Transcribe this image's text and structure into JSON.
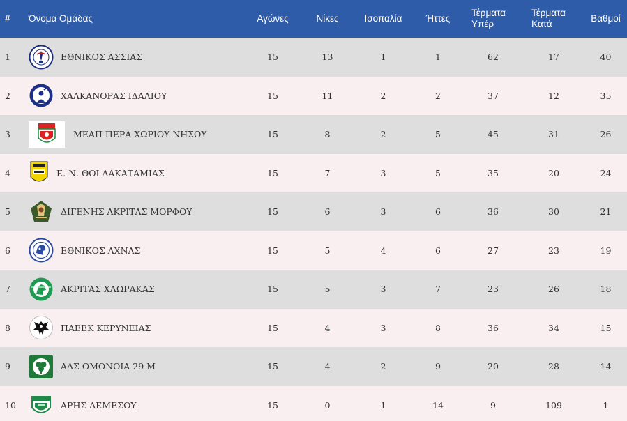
{
  "headers": {
    "rank": "#",
    "team": "Όνομα Ομάδας",
    "played": "Αγώνες",
    "wins": "Νίκες",
    "draws": "Ισοπαλία",
    "losses": "Ήττες",
    "goals_for_1": "Τέρματα",
    "goals_for_2": "Υπέρ",
    "goals_against_1": "Τέρματα",
    "goals_against_2": "Κατά",
    "points": "Βαθμοί"
  },
  "colors": {
    "header_bg": "#2e5ca8",
    "row_odd": "#dedede",
    "row_even": "#f9eff0"
  },
  "rows": [
    {
      "rank": "1",
      "team": "ΕΘΝΙΚΟΣ ΑΣΣΙΑΣ",
      "logo": "ethnikos-assias-crest-icon",
      "played": "15",
      "wins": "13",
      "draws": "1",
      "losses": "1",
      "gf": "62",
      "ga": "17",
      "pts": "40"
    },
    {
      "rank": "2",
      "team": "ΧΑΛΚΑΝΟΡΑΣ ΙΔΑΛΙΟΥ",
      "logo": "chalkanoras-crest-icon",
      "played": "15",
      "wins": "11",
      "draws": "2",
      "losses": "2",
      "gf": "37",
      "ga": "12",
      "pts": "35"
    },
    {
      "rank": "3",
      "team": "ΜΕΑΠ ΠΕΡΑ ΧΩΡΙΟΥ ΝΗΣΟΥ",
      "logo": "meap-crest-icon",
      "played": "15",
      "wins": "8",
      "draws": "2",
      "losses": "5",
      "gf": "45",
      "ga": "31",
      "pts": "26"
    },
    {
      "rank": "4",
      "team": "Ε. Ν. ΘΟΙ ΛΑΚΑΤΑΜΙΑΣ",
      "logo": "thoi-crest-icon",
      "played": "15",
      "wins": "7",
      "draws": "3",
      "losses": "5",
      "gf": "35",
      "ga": "20",
      "pts": "24"
    },
    {
      "rank": "5",
      "team": "ΔΙΓΕΝΗΣ ΑΚΡΙΤΑΣ ΜΟΡΦΟΥ",
      "logo": "digenis-crest-icon",
      "played": "15",
      "wins": "6",
      "draws": "3",
      "losses": "6",
      "gf": "36",
      "ga": "30",
      "pts": "21"
    },
    {
      "rank": "6",
      "team": "ΕΘΝΙΚΟΣ ΑΧΝΑΣ",
      "logo": "ethnikos-achnas-crest-icon",
      "played": "15",
      "wins": "5",
      "draws": "4",
      "losses": "6",
      "gf": "27",
      "ga": "23",
      "pts": "19"
    },
    {
      "rank": "7",
      "team": "ΑΚΡΙΤΑΣ ΧΛΩΡΑΚΑΣ",
      "logo": "akritas-crest-icon",
      "played": "15",
      "wins": "5",
      "draws": "3",
      "losses": "7",
      "gf": "23",
      "ga": "26",
      "pts": "18"
    },
    {
      "rank": "8",
      "team": "ΠΑΕΕΚ ΚΕΡΥΝΕΙΑΣ",
      "logo": "paeek-crest-icon",
      "played": "15",
      "wins": "4",
      "draws": "3",
      "losses": "8",
      "gf": "36",
      "ga": "34",
      "pts": "15"
    },
    {
      "rank": "9",
      "team": "ΑΛΣ ΟΜΟΝΟΙΑ 29 Μ",
      "logo": "omonoia-crest-icon",
      "played": "15",
      "wins": "4",
      "draws": "2",
      "losses": "9",
      "gf": "20",
      "ga": "28",
      "pts": "14"
    },
    {
      "rank": "10",
      "team": "ΑΡΗΣ ΛΕΜΕΣΟΥ",
      "logo": "aris-crest-icon",
      "played": "15",
      "wins": "0",
      "draws": "1",
      "losses": "14",
      "gf": "9",
      "ga": "109",
      "pts": "1"
    }
  ]
}
